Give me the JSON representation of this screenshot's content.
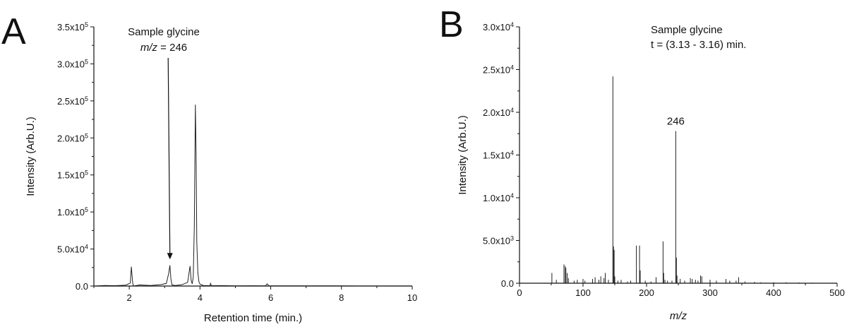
{
  "chart_data": [
    {
      "panel_label": "A",
      "type": "line",
      "xlabel": "Retention time (min.)",
      "ylabel": "Intensity (Arb.U.)",
      "xlim": [
        1,
        10
      ],
      "ylim": [
        0,
        350000
      ],
      "x_ticks": [
        2,
        4,
        6,
        8,
        10
      ],
      "x_tick_labels": [
        "2",
        "4",
        "6",
        "8",
        "10"
      ],
      "y_ticks": [
        0,
        50000,
        100000,
        150000,
        200000,
        250000,
        300000,
        350000
      ],
      "y_tick_labels": [
        {
          "text": "0.0",
          "exp": ""
        },
        {
          "text": "5.0x10",
          "exp": "4"
        },
        {
          "text": "1.0x10",
          "exp": "5"
        },
        {
          "text": "1.5x10",
          "exp": "5"
        },
        {
          "text": "2.0x10",
          "exp": "5"
        },
        {
          "text": "2.5x10",
          "exp": "5"
        },
        {
          "text": "3.0x10",
          "exp": "5"
        },
        {
          "text": "3.5x10",
          "exp": "5"
        }
      ],
      "annotations": {
        "line1": "Sample glycine",
        "line2_italic": "m/z",
        "line2_rest": " = 246"
      },
      "arrow_peak": {
        "x_from": 3.1,
        "y_from": 308000,
        "x_to": 3.15,
        "y_to": 36000
      },
      "series": [
        {
          "x": [
            1.0,
            1.3,
            1.6,
            1.9,
            2.03,
            2.06,
            2.08,
            2.1,
            2.13,
            2.3,
            2.6,
            2.9,
            3.05,
            3.12,
            3.15,
            3.18,
            3.21,
            3.3,
            3.5,
            3.65,
            3.72,
            3.75,
            3.78,
            3.81,
            3.84,
            3.87,
            3.89,
            3.91,
            3.94,
            3.97,
            4.0,
            4.1,
            4.28,
            4.3,
            4.32,
            4.6,
            5.0,
            5.5,
            5.85,
            5.9,
            5.95,
            6.3,
            7.0,
            8.0,
            9.0,
            10.0
          ],
          "y": [
            0,
            800,
            500,
            1200,
            4000,
            26000,
            14000,
            3000,
            0,
            1500,
            700,
            2000,
            3500,
            18000,
            28000,
            9000,
            1500,
            800,
            2000,
            5000,
            27000,
            8000,
            3000,
            12000,
            80000,
            245000,
            180000,
            60000,
            18000,
            6000,
            2500,
            800,
            500,
            3500,
            500,
            600,
            300,
            400,
            200,
            3000,
            200,
            300,
            200,
            150,
            100,
            100
          ]
        }
      ]
    },
    {
      "panel_label": "B",
      "type": "bar",
      "xlabel_italic": "m/z",
      "ylabel": "Intensity (Arb.U.)",
      "xlim": [
        0,
        500
      ],
      "ylim": [
        0,
        30000
      ],
      "x_ticks": [
        0,
        100,
        200,
        300,
        400,
        500
      ],
      "x_tick_labels": [
        "0",
        "100",
        "200",
        "300",
        "400",
        "500"
      ],
      "y_ticks": [
        0,
        5000,
        10000,
        15000,
        20000,
        25000,
        30000
      ],
      "y_tick_labels": [
        {
          "text": "0.0",
          "exp": ""
        },
        {
          "text": "5.0x10",
          "exp": "3"
        },
        {
          "text": "1.0x10",
          "exp": "4"
        },
        {
          "text": "1.5x10",
          "exp": "4"
        },
        {
          "text": "2.0x10",
          "exp": "4"
        },
        {
          "text": "2.5x10",
          "exp": "4"
        },
        {
          "text": "3.0x10",
          "exp": "4"
        }
      ],
      "annotations": {
        "line1": "Sample glycine",
        "line2": "t = (3.13 - 3.16) min.",
        "peak_label": "246"
      },
      "peak_label_x": 246,
      "peak_label_y": 17800,
      "x": [
        51,
        58,
        70,
        72,
        73,
        75,
        77,
        86,
        91,
        100,
        103,
        115,
        119,
        125,
        128,
        133,
        135,
        140,
        147,
        148,
        149,
        150,
        155,
        160,
        170,
        175,
        184,
        189,
        190,
        198,
        207,
        215,
        226,
        227,
        229,
        233,
        240,
        246,
        247,
        248,
        253,
        260,
        269,
        272,
        277,
        281,
        285,
        287,
        300,
        310,
        325,
        331,
        341,
        345,
        355,
        370,
        380,
        400,
        420,
        440,
        460
      ],
      "y": [
        1200,
        400,
        2200,
        2000,
        1800,
        1200,
        600,
        300,
        400,
        500,
        300,
        500,
        700,
        400,
        800,
        600,
        1200,
        400,
        24200,
        4300,
        3900,
        800,
        300,
        400,
        200,
        300,
        4400,
        4400,
        1500,
        300,
        200,
        700,
        4900,
        1200,
        400,
        300,
        300,
        17800,
        3000,
        900,
        500,
        300,
        600,
        500,
        400,
        300,
        900,
        800,
        400,
        300,
        500,
        300,
        300,
        700,
        200,
        150,
        100,
        100,
        100,
        80,
        60
      ]
    }
  ]
}
